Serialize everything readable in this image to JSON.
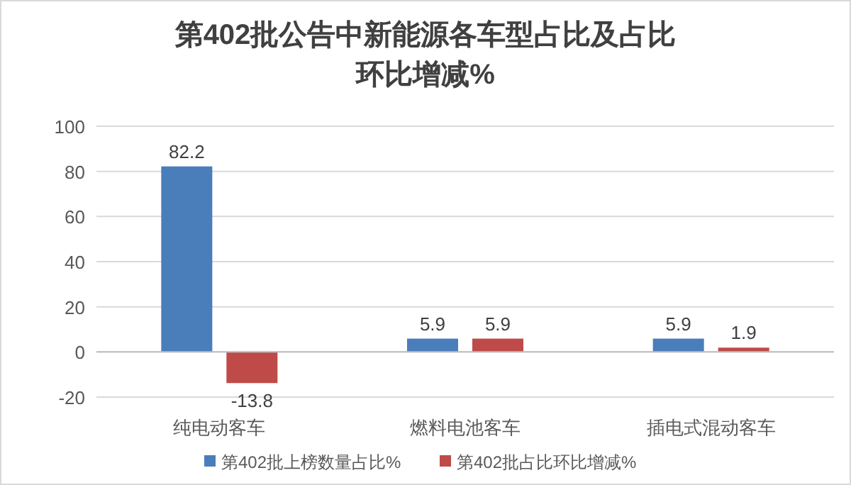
{
  "chart_data": {
    "type": "bar",
    "title": "第402批公告中新能源各车型占比及占比环比增减%",
    "categories": [
      "纯电动客车",
      "燃料电池客车",
      "插电式混动客车"
    ],
    "series": [
      {
        "name": "第402批上榜数量占比%",
        "color": "#4a7ebb",
        "values": [
          82.2,
          5.9,
          5.9
        ]
      },
      {
        "name": "第402批占比环比增减%",
        "color": "#be4b48",
        "values": [
          -13.8,
          5.9,
          1.9
        ]
      }
    ],
    "ylim": [
      -20,
      100
    ],
    "yticks": [
      -20,
      0,
      20,
      40,
      60,
      80,
      100
    ],
    "grid": "y",
    "legend": "bottom",
    "data_labels": true
  }
}
